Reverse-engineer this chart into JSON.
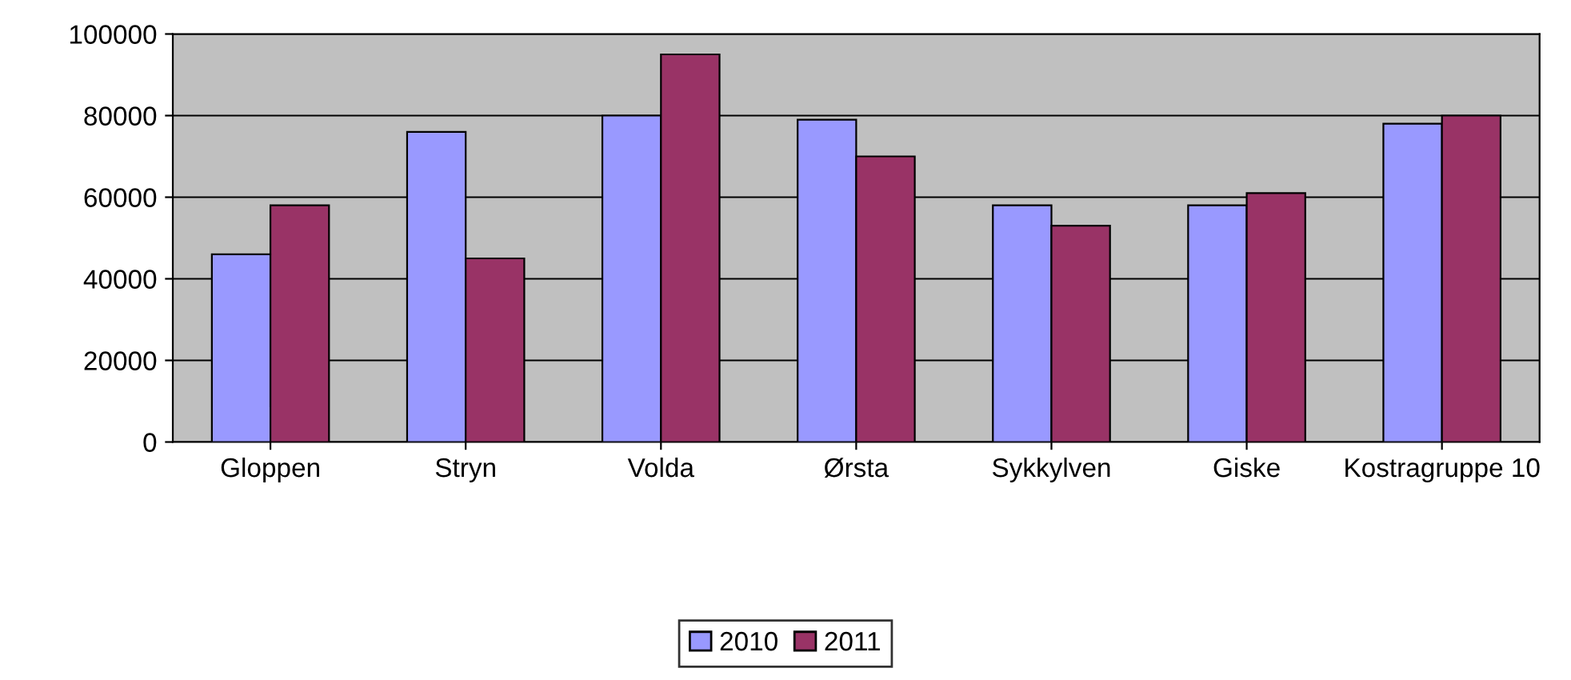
{
  "chart_data": {
    "type": "bar",
    "categories": [
      "Gloppen",
      "Stryn",
      "Volda",
      "Ørsta",
      "Sykkylven",
      "Giske",
      "Kostragruppe 10"
    ],
    "series": [
      {
        "name": "2010",
        "color": "#9999ff",
        "values": [
          46000,
          76000,
          80000,
          79000,
          58000,
          58000,
          78000
        ]
      },
      {
        "name": "2011",
        "color": "#993366",
        "values": [
          58000,
          45000,
          95000,
          70000,
          53000,
          61000,
          80000
        ]
      }
    ],
    "ylim": [
      0,
      100000
    ],
    "yticks": [
      0,
      20000,
      40000,
      60000,
      80000,
      100000
    ],
    "grid": "y",
    "legend": "bottom"
  }
}
